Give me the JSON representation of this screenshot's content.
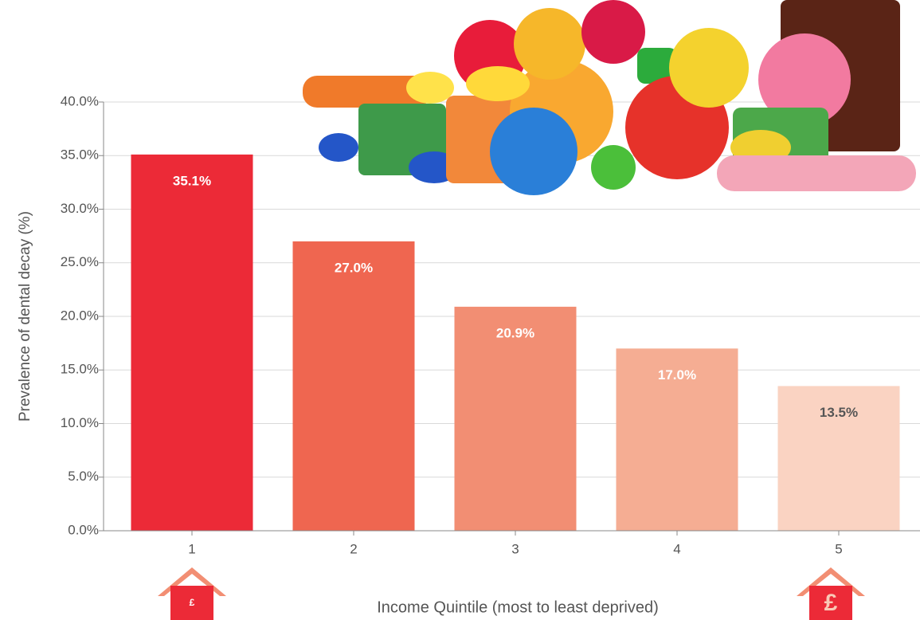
{
  "chart_data": {
    "type": "bar",
    "y_label": "Prevalence of dental decay (%)",
    "x_label": "Income Quintile (most to least deprived)",
    "categories": [
      "1",
      "2",
      "3",
      "4",
      "5"
    ],
    "values": [
      35.1,
      27.0,
      20.9,
      17.0,
      13.5
    ],
    "value_labels": [
      "35.1%",
      "27.0%",
      "20.9%",
      "17.0%",
      "13.5%"
    ],
    "colors": [
      "#ec2a37",
      "#ef6650",
      "#f28e73",
      "#f5ad93",
      "#fad3c2"
    ],
    "label_colors": [
      "#ffffff",
      "#ffffff",
      "#ffffff",
      "#ffffff",
      "#555555"
    ],
    "ylim": [
      0,
      40
    ],
    "yticks": [
      {
        "value": 0,
        "label": "0.0%"
      },
      {
        "value": 5,
        "label": "5.0%"
      },
      {
        "value": 10,
        "label": "10.0%"
      },
      {
        "value": 15,
        "label": "15.0%"
      },
      {
        "value": 20,
        "label": "20.0%"
      },
      {
        "value": 25,
        "label": "25.0%"
      },
      {
        "value": 30,
        "label": "30.0%"
      },
      {
        "value": 35,
        "label": "35.0%"
      },
      {
        "value": 40,
        "label": "40.0%"
      }
    ],
    "grid": true,
    "house_icons": [
      "£",
      "£"
    ]
  }
}
